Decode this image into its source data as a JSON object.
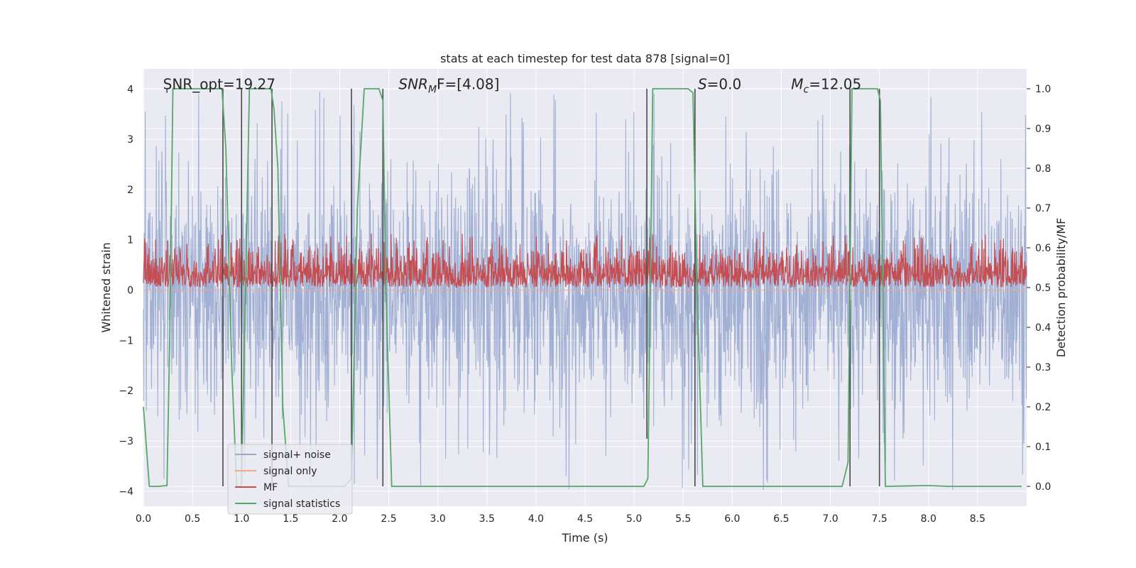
{
  "chart_data": {
    "type": "line",
    "title": "stats at each timestep for test data 878 [signal=0]",
    "xlabel": "Time (s)",
    "ylabel": "Whitened strain",
    "y2label": "Detection probability/MF",
    "xlim": [
      0,
      9.0
    ],
    "ylim": [
      -4.3,
      4.4
    ],
    "y2lim": [
      -0.05,
      1.05
    ],
    "xticks": [
      "0.0",
      "0.5",
      "1.0",
      "1.5",
      "2.0",
      "2.5",
      "3.0",
      "3.5",
      "4.0",
      "4.5",
      "5.0",
      "5.5",
      "6.0",
      "6.5",
      "7.0",
      "7.5",
      "8.0",
      "8.5"
    ],
    "yticks": [
      "−4",
      "−3",
      "−2",
      "−1",
      "0",
      "1",
      "2",
      "3",
      "4"
    ],
    "y2ticks": [
      "0.0",
      "0.1",
      "0.2",
      "0.3",
      "0.4",
      "0.5",
      "0.6",
      "0.7",
      "0.8",
      "0.9",
      "1.0"
    ],
    "grid": true,
    "legend_position": "lower-left",
    "colors": {
      "plot_bg": "#eaeaf2",
      "grid": "#ffffff",
      "signal_noise": "#98a9cf",
      "signal_only": "#f0a888",
      "mf": "#c44e52",
      "signal_statistics": "#55a868",
      "boundary": "#4a4a4a"
    },
    "annotations": [
      {
        "text": "SNR_opt=19.27",
        "x": 0.2,
        "y": 4.0
      },
      {
        "base": "SNR",
        "sub": "M",
        "tail": "F=[4.08]",
        "x": 2.6,
        "y": 4.0
      },
      {
        "base": "S",
        "tail": "=0.0",
        "x": 5.65,
        "y": 4.0
      },
      {
        "base": "M",
        "sub": "c",
        "tail": "=12.05",
        "x": 6.6,
        "y": 4.0
      }
    ],
    "series": [
      {
        "name": "signal+ noise",
        "kind": "noise",
        "axis": "left",
        "amp": 1.45,
        "sparse": 4.0
      },
      {
        "name": "signal only",
        "kind": "flat",
        "axis": "left",
        "value": 0
      },
      {
        "name": "MF",
        "kind": "mf",
        "axis": "right",
        "base": 0.5,
        "amp": 0.08
      },
      {
        "name": "signal statistics",
        "kind": "line",
        "axis": "right",
        "x": [
          0.0,
          0.06,
          0.15,
          0.24,
          0.27,
          0.3,
          0.6,
          0.8,
          0.84,
          0.9,
          0.95,
          1.0,
          1.04,
          1.08,
          1.3,
          1.33,
          1.37,
          1.42,
          1.48,
          1.6,
          2.05,
          2.12,
          2.18,
          2.25,
          2.4,
          2.44,
          2.47,
          2.53,
          2.8,
          5.1,
          5.14,
          5.19,
          5.55,
          5.6,
          5.64,
          5.7,
          6.5,
          7.12,
          7.18,
          7.22,
          7.48,
          7.51,
          7.56,
          8.0,
          8.2,
          8.95
        ],
        "y": [
          0.2,
          0.0,
          0.0,
          0.002,
          0.4,
          1.0,
          1.0,
          1.0,
          0.85,
          0.3,
          0.0,
          0.0,
          0.5,
          1.0,
          1.0,
          0.95,
          0.8,
          0.2,
          0.0,
          0.0,
          0.0,
          0.02,
          0.7,
          1.0,
          1.0,
          0.97,
          0.5,
          0.0,
          0.0,
          0.0,
          0.02,
          1.0,
          1.0,
          0.99,
          0.5,
          0.0,
          0.0,
          0.0,
          0.06,
          1.0,
          1.0,
          0.97,
          0.0,
          0.002,
          0.0,
          0.0
        ]
      }
    ],
    "boundaries": [
      {
        "x": 0.24,
        "bottom": 0.99,
        "top": 1.0
      },
      {
        "x": 0.81,
        "bottom": 0.0,
        "top": 1.0
      },
      {
        "x": 1.0,
        "bottom": 0.0,
        "top": 1.0
      },
      {
        "x": 1.31,
        "bottom": 0.0,
        "top": 1.0
      },
      {
        "x": 2.12,
        "bottom": 0.03,
        "top": 1.0
      },
      {
        "x": 2.44,
        "bottom": 0.0,
        "top": 1.0
      },
      {
        "x": 5.13,
        "bottom": 0.12,
        "top": 1.0
      },
      {
        "x": 5.62,
        "bottom": 0.0,
        "top": 1.0
      },
      {
        "x": 7.2,
        "bottom": 0.0,
        "top": 1.0
      },
      {
        "x": 7.5,
        "bottom": 0.0,
        "top": 1.0
      }
    ]
  }
}
